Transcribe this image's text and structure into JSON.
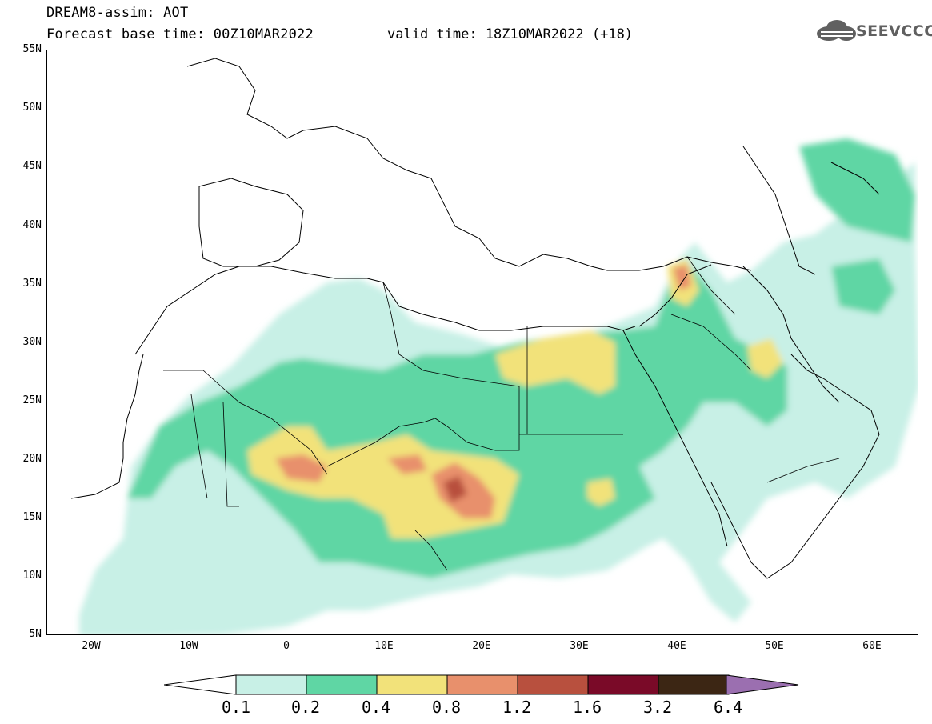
{
  "header": {
    "model_title": "DREAM8-assim: AOT",
    "base_time": "Forecast base time: 00Z10MAR2022",
    "valid_time": "valid time: 18Z10MAR2022 (+18)"
  },
  "logo": {
    "text": "SEEVCCC",
    "icon": "cloud-icon"
  },
  "map": {
    "lat_ticks": [
      "55N",
      "50N",
      "45N",
      "40N",
      "35N",
      "30N",
      "25N",
      "20N",
      "15N",
      "10N",
      "5N"
    ],
    "lon_ticks": [
      "20W",
      "10W",
      "0",
      "10E",
      "20E",
      "30E",
      "40E",
      "50E",
      "60E"
    ],
    "lat_range": [
      5,
      55
    ],
    "lon_range": [
      -25,
      65
    ],
    "field": "Aerosol Optical Thickness"
  },
  "colorbar": {
    "labels": [
      "0.1",
      "0.2",
      "0.4",
      "0.8",
      "1.2",
      "1.6",
      "3.2",
      "6.4"
    ],
    "colors": [
      "#c8f0e6",
      "#5fd6a4",
      "#f2e27a",
      "#e8906c",
      "#b8503e",
      "#7a0a28",
      "#3c2614",
      "#9b6fb0"
    ]
  }
}
